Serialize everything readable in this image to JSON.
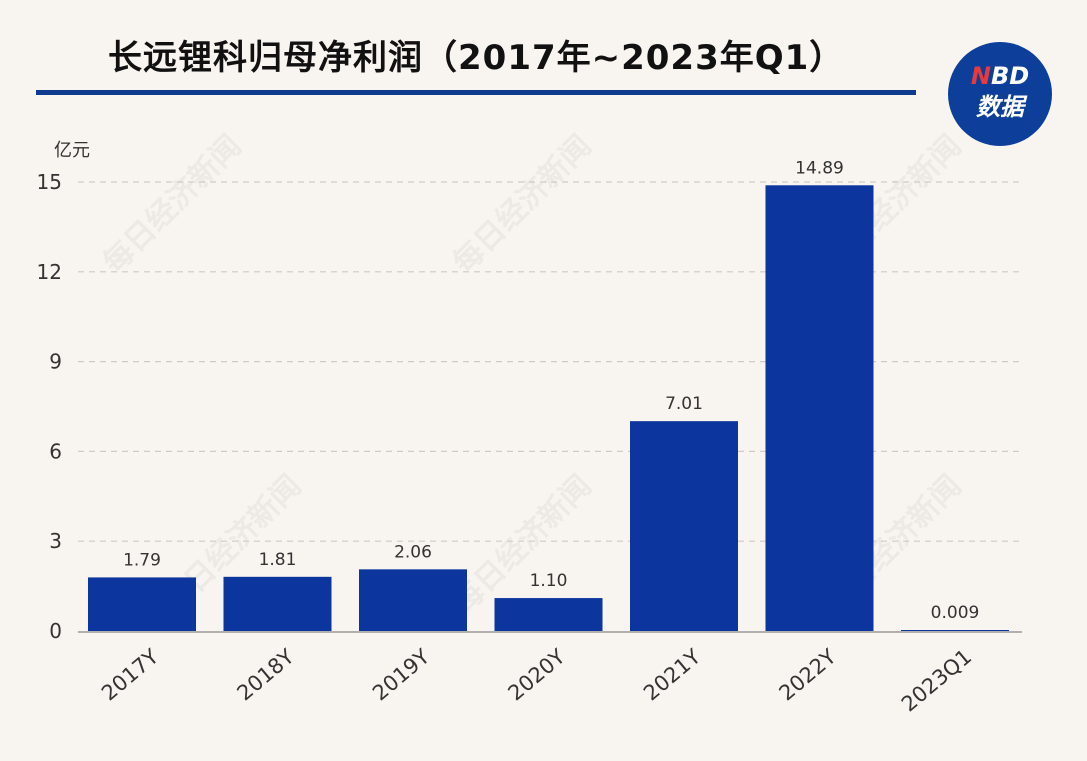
{
  "header": {
    "title": "长远锂科归母净利润（2017年~2023年Q1）"
  },
  "logo": {
    "line1_n": "N",
    "line1_rest": "BD",
    "line2": "数据"
  },
  "watermark_text": "每日经济新闻",
  "colors": {
    "bar": "#0c359e",
    "title_rule": "#0f3b8f",
    "background": "#f8f4ef",
    "logo_bg": "#0d3f9a",
    "logo_accent": "#e83a3a"
  },
  "chart_data": {
    "type": "bar",
    "title": "长远锂科归母净利润（2017年~2023年Q1）",
    "ylabel": "亿元",
    "xlabel": "",
    "categories": [
      "2017Y",
      "2018Y",
      "2019Y",
      "2020Y",
      "2021Y",
      "2022Y",
      "2023Q1"
    ],
    "values": [
      1.79,
      1.81,
      2.06,
      1.1,
      7.01,
      14.89,
      0.009
    ],
    "value_labels": [
      "1.79",
      "1.81",
      "2.06",
      "1.10",
      "7.01",
      "14.89",
      "0.009"
    ],
    "ylim": [
      0,
      15
    ],
    "yticks": [
      0,
      3,
      6,
      9,
      12,
      15
    ],
    "grid": true,
    "legend": "none"
  }
}
